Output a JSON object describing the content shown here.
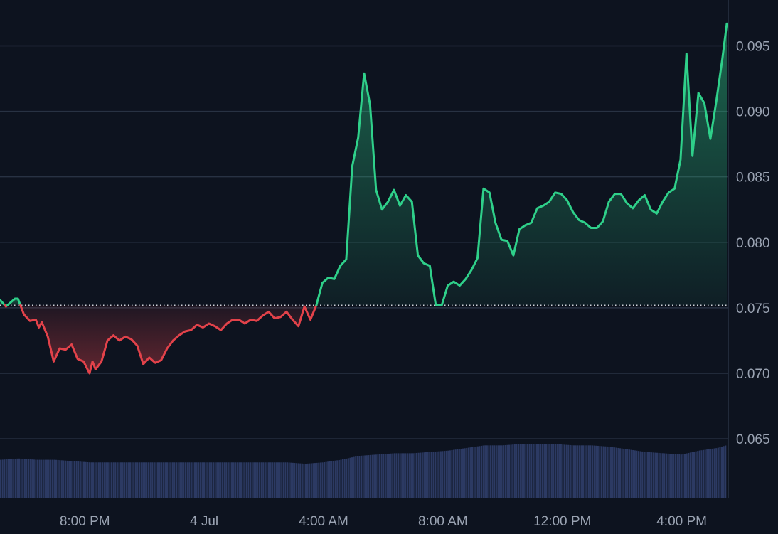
{
  "colors": {
    "background": "#0d131f",
    "grid": "#283243",
    "up": "#2fd08a",
    "down": "#e2424a",
    "baseline": "#cfd3da",
    "volume": "#2c3a63",
    "axis_text": "#9aa3b2"
  },
  "chart_data": {
    "type": "area",
    "title": "",
    "xlabel": "",
    "ylabel": "",
    "baseline": 0.0752,
    "ylim": [
      0.0605,
      0.0985
    ],
    "y_ticks": [
      "0.095",
      "0.090",
      "0.085",
      "0.080",
      "0.075",
      "0.070",
      "0.065"
    ],
    "y_tick_values": [
      0.095,
      0.09,
      0.085,
      0.08,
      0.075,
      0.07,
      0.065
    ],
    "x_ticks": [
      "8:00 PM",
      "4 Jul",
      "4:00 AM",
      "8:00 AM",
      "12:00 PM",
      "4:00 PM"
    ],
    "x_tick_hours": [
      2.84,
      6.84,
      10.84,
      14.84,
      18.84,
      22.84
    ],
    "xlim_hours": [
      0,
      24.35
    ],
    "grid": true,
    "series": [
      {
        "type": "line",
        "points": [
          [
            0.0,
            0.0756
          ],
          [
            0.2,
            0.0751
          ],
          [
            0.5,
            0.0757
          ],
          [
            0.6,
            0.0757
          ],
          [
            0.8,
            0.0745
          ],
          [
            1.0,
            0.074
          ],
          [
            1.2,
            0.0741
          ],
          [
            1.3,
            0.0735
          ],
          [
            1.4,
            0.0739
          ],
          [
            1.6,
            0.0728
          ],
          [
            1.8,
            0.0709
          ],
          [
            2.0,
            0.0719
          ],
          [
            2.2,
            0.0718
          ],
          [
            2.4,
            0.0722
          ],
          [
            2.6,
            0.0711
          ],
          [
            2.8,
            0.0709
          ],
          [
            3.0,
            0.07
          ],
          [
            3.1,
            0.0709
          ],
          [
            3.2,
            0.0703
          ],
          [
            3.4,
            0.0709
          ],
          [
            3.6,
            0.0725
          ],
          [
            3.8,
            0.0729
          ],
          [
            4.0,
            0.0725
          ],
          [
            4.2,
            0.0728
          ],
          [
            4.4,
            0.0726
          ],
          [
            4.6,
            0.0721
          ],
          [
            4.8,
            0.0707
          ],
          [
            5.0,
            0.0712
          ],
          [
            5.2,
            0.0708
          ],
          [
            5.4,
            0.071
          ],
          [
            5.6,
            0.0719
          ],
          [
            5.8,
            0.0725
          ],
          [
            6.0,
            0.0729
          ],
          [
            6.2,
            0.0732
          ],
          [
            6.4,
            0.0733
          ],
          [
            6.6,
            0.0737
          ],
          [
            6.8,
            0.0735
          ],
          [
            7.0,
            0.0738
          ],
          [
            7.2,
            0.0736
          ],
          [
            7.4,
            0.0733
          ],
          [
            7.6,
            0.0738
          ],
          [
            7.8,
            0.0741
          ],
          [
            8.0,
            0.0741
          ],
          [
            8.2,
            0.0738
          ],
          [
            8.4,
            0.0741
          ],
          [
            8.6,
            0.074
          ],
          [
            8.8,
            0.0744
          ],
          [
            9.0,
            0.0747
          ],
          [
            9.2,
            0.0742
          ],
          [
            9.4,
            0.0743
          ],
          [
            9.6,
            0.0747
          ],
          [
            9.8,
            0.0741
          ],
          [
            10.0,
            0.0736
          ],
          [
            10.2,
            0.0751
          ],
          [
            10.4,
            0.0741
          ],
          [
            10.6,
            0.0752
          ],
          [
            10.8,
            0.0769
          ],
          [
            11.0,
            0.0773
          ],
          [
            11.2,
            0.0772
          ],
          [
            11.4,
            0.0782
          ],
          [
            11.6,
            0.0787
          ],
          [
            11.8,
            0.0858
          ],
          [
            12.0,
            0.088
          ],
          [
            12.2,
            0.0929
          ],
          [
            12.4,
            0.0905
          ],
          [
            12.6,
            0.084
          ],
          [
            12.8,
            0.0825
          ],
          [
            13.0,
            0.0831
          ],
          [
            13.2,
            0.084
          ],
          [
            13.4,
            0.0828
          ],
          [
            13.6,
            0.0836
          ],
          [
            13.8,
            0.0831
          ],
          [
            14.0,
            0.079
          ],
          [
            14.2,
            0.0784
          ],
          [
            14.4,
            0.0782
          ],
          [
            14.6,
            0.0752
          ],
          [
            14.8,
            0.0752
          ],
          [
            15.0,
            0.0767
          ],
          [
            15.2,
            0.077
          ],
          [
            15.4,
            0.0767
          ],
          [
            15.6,
            0.0772
          ],
          [
            15.8,
            0.0779
          ],
          [
            16.0,
            0.0788
          ],
          [
            16.2,
            0.0841
          ],
          [
            16.4,
            0.0838
          ],
          [
            16.6,
            0.0815
          ],
          [
            16.8,
            0.0802
          ],
          [
            17.0,
            0.0801
          ],
          [
            17.2,
            0.079
          ],
          [
            17.4,
            0.081
          ],
          [
            17.6,
            0.0813
          ],
          [
            17.8,
            0.0815
          ],
          [
            18.0,
            0.0826
          ],
          [
            18.2,
            0.0828
          ],
          [
            18.4,
            0.0831
          ],
          [
            18.6,
            0.0838
          ],
          [
            18.8,
            0.0837
          ],
          [
            19.0,
            0.0832
          ],
          [
            19.2,
            0.0823
          ],
          [
            19.4,
            0.0817
          ],
          [
            19.6,
            0.0815
          ],
          [
            19.8,
            0.0811
          ],
          [
            20.0,
            0.0811
          ],
          [
            20.2,
            0.0816
          ],
          [
            20.4,
            0.0831
          ],
          [
            20.6,
            0.0837
          ],
          [
            20.8,
            0.0837
          ],
          [
            21.0,
            0.083
          ],
          [
            21.2,
            0.0826
          ],
          [
            21.4,
            0.0832
          ],
          [
            21.6,
            0.0836
          ],
          [
            21.8,
            0.0825
          ],
          [
            22.0,
            0.0822
          ],
          [
            22.2,
            0.0831
          ],
          [
            22.4,
            0.0838
          ],
          [
            22.6,
            0.0841
          ],
          [
            22.8,
            0.0863
          ],
          [
            23.0,
            0.0944
          ],
          [
            23.2,
            0.0866
          ],
          [
            23.4,
            0.0914
          ],
          [
            23.6,
            0.0906
          ],
          [
            23.8,
            0.0879
          ],
          [
            24.0,
            0.0908
          ],
          [
            24.2,
            0.094
          ],
          [
            24.35,
            0.0967
          ]
        ]
      },
      {
        "type": "volume",
        "points": [
          [
            0.0,
            0.0634
          ],
          [
            0.6,
            0.0635
          ],
          [
            1.2,
            0.0634
          ],
          [
            1.8,
            0.0634
          ],
          [
            2.4,
            0.0633
          ],
          [
            3.0,
            0.0632
          ],
          [
            3.6,
            0.0632
          ],
          [
            4.2,
            0.0632
          ],
          [
            4.8,
            0.0632
          ],
          [
            5.4,
            0.0632
          ],
          [
            6.0,
            0.0632
          ],
          [
            6.6,
            0.0632
          ],
          [
            7.2,
            0.0632
          ],
          [
            7.8,
            0.0632
          ],
          [
            8.4,
            0.0632
          ],
          [
            9.0,
            0.0632
          ],
          [
            9.6,
            0.0632
          ],
          [
            10.2,
            0.0631
          ],
          [
            10.8,
            0.0632
          ],
          [
            11.4,
            0.0634
          ],
          [
            12.0,
            0.0637
          ],
          [
            12.6,
            0.0638
          ],
          [
            13.2,
            0.0639
          ],
          [
            13.8,
            0.0639
          ],
          [
            14.4,
            0.064
          ],
          [
            15.0,
            0.0641
          ],
          [
            15.6,
            0.0643
          ],
          [
            16.2,
            0.0645
          ],
          [
            16.8,
            0.0645
          ],
          [
            17.4,
            0.0646
          ],
          [
            18.0,
            0.0646
          ],
          [
            18.6,
            0.0646
          ],
          [
            19.2,
            0.0645
          ],
          [
            19.8,
            0.0645
          ],
          [
            20.4,
            0.0644
          ],
          [
            21.0,
            0.0642
          ],
          [
            21.6,
            0.064
          ],
          [
            22.2,
            0.0639
          ],
          [
            22.8,
            0.0638
          ],
          [
            23.4,
            0.0641
          ],
          [
            24.0,
            0.0643
          ],
          [
            24.3,
            0.0645
          ]
        ]
      }
    ]
  }
}
